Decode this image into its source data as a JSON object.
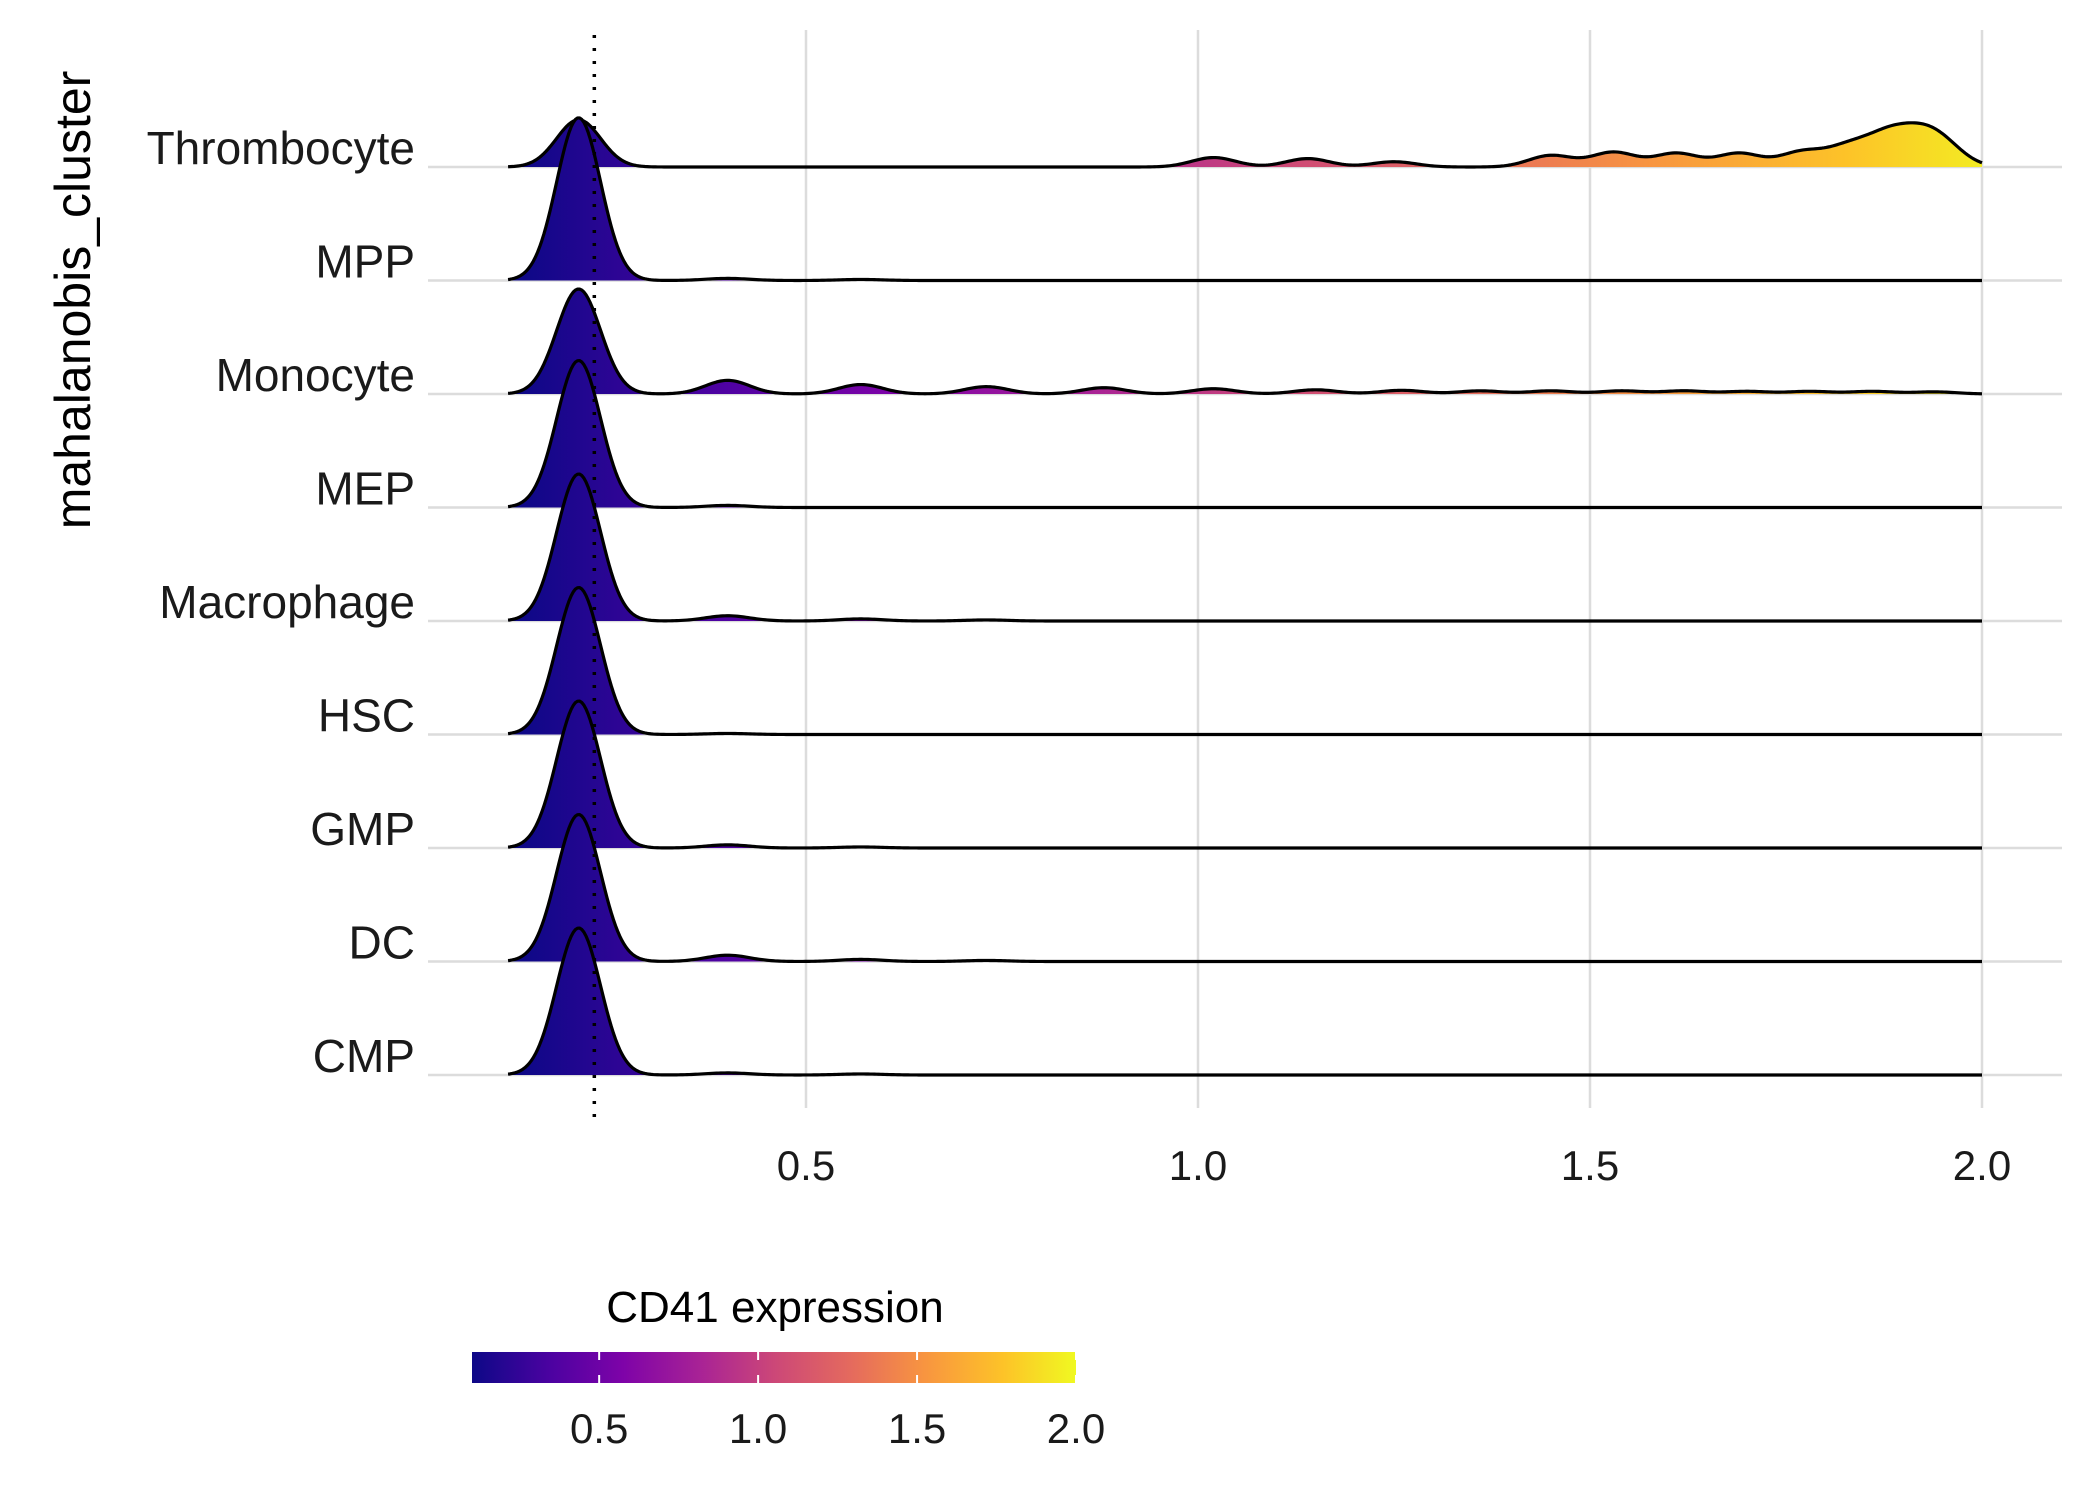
{
  "chart_data": {
    "type": "ridgeline",
    "ylabel": "mahalanobis_cluster",
    "xlabel": "",
    "xlim": [
      0.05,
      2.1
    ],
    "x_ticks": [
      0.5,
      1.0,
      1.5,
      2.0
    ],
    "x_tick_labels": [
      "0.5",
      "1.0",
      "1.5",
      "2.0"
    ],
    "grid": true,
    "reference_line_x": 0.23,
    "categories": [
      "CMP",
      "DC",
      "GMP",
      "HSC",
      "Macrophage",
      "MEP",
      "Monocyte",
      "MPP",
      "Thrombocyte"
    ],
    "series": [
      {
        "name": "CMP",
        "x": [
          0.12,
          0.21,
          0.3,
          0.4,
          0.57,
          2.0
        ],
        "density": [
          0.0,
          1.4,
          0.0,
          0.02,
          0.01,
          0.0
        ]
      },
      {
        "name": "DC",
        "x": [
          0.12,
          0.21,
          0.3,
          0.4,
          0.57,
          0.73,
          2.0
        ],
        "density": [
          0.0,
          1.4,
          0.0,
          0.06,
          0.02,
          0.01,
          0.0
        ]
      },
      {
        "name": "GMP",
        "x": [
          0.12,
          0.21,
          0.3,
          0.4,
          0.57,
          2.0
        ],
        "density": [
          0.0,
          1.4,
          0.0,
          0.03,
          0.01,
          0.0
        ]
      },
      {
        "name": "HSC",
        "x": [
          0.12,
          0.21,
          0.3,
          0.4,
          2.0
        ],
        "density": [
          0.0,
          1.4,
          0.0,
          0.01,
          0.0
        ]
      },
      {
        "name": "Macrophage",
        "x": [
          0.12,
          0.21,
          0.3,
          0.4,
          0.57,
          0.73,
          2.0
        ],
        "density": [
          0.0,
          1.4,
          0.0,
          0.05,
          0.02,
          0.01,
          0.0
        ]
      },
      {
        "name": "MEP",
        "x": [
          0.12,
          0.21,
          0.3,
          0.4,
          2.0
        ],
        "density": [
          0.0,
          1.4,
          0.0,
          0.02,
          0.0
        ]
      },
      {
        "name": "Monocyte",
        "x": [
          0.12,
          0.21,
          0.3,
          0.4,
          0.57,
          0.73,
          0.88,
          1.02,
          1.15,
          1.26,
          1.36,
          1.45,
          1.54,
          1.62,
          1.7,
          1.78,
          1.86,
          1.94,
          2.0
        ],
        "density": [
          0.0,
          1.0,
          0.0,
          0.13,
          0.09,
          0.07,
          0.06,
          0.05,
          0.04,
          0.035,
          0.03,
          0.03,
          0.03,
          0.03,
          0.025,
          0.025,
          0.025,
          0.02,
          0.0
        ]
      },
      {
        "name": "MPP",
        "x": [
          0.12,
          0.21,
          0.3,
          0.4,
          0.57,
          2.0
        ],
        "density": [
          0.0,
          1.55,
          0.0,
          0.02,
          0.01,
          0.0
        ]
      },
      {
        "name": "Thrombocyte",
        "x": [
          0.12,
          0.21,
          0.3,
          1.02,
          1.14,
          1.25,
          1.45,
          1.53,
          1.61,
          1.69,
          1.77,
          1.83,
          1.88,
          1.92,
          1.95,
          2.0
        ],
        "density": [
          0.0,
          0.45,
          0.0,
          0.09,
          0.08,
          0.05,
          0.11,
          0.14,
          0.13,
          0.13,
          0.14,
          0.18,
          0.26,
          0.22,
          0.18,
          0.0
        ]
      }
    ],
    "legend": {
      "title": "CD41 expression",
      "position": "bottom",
      "colormap": "plasma",
      "range": [
        0.1,
        2.0
      ],
      "ticks": [
        0.5,
        1.0,
        1.5,
        2.0
      ],
      "tick_labels": [
        "0.5",
        "1.0",
        "1.5",
        "2.0"
      ]
    }
  }
}
